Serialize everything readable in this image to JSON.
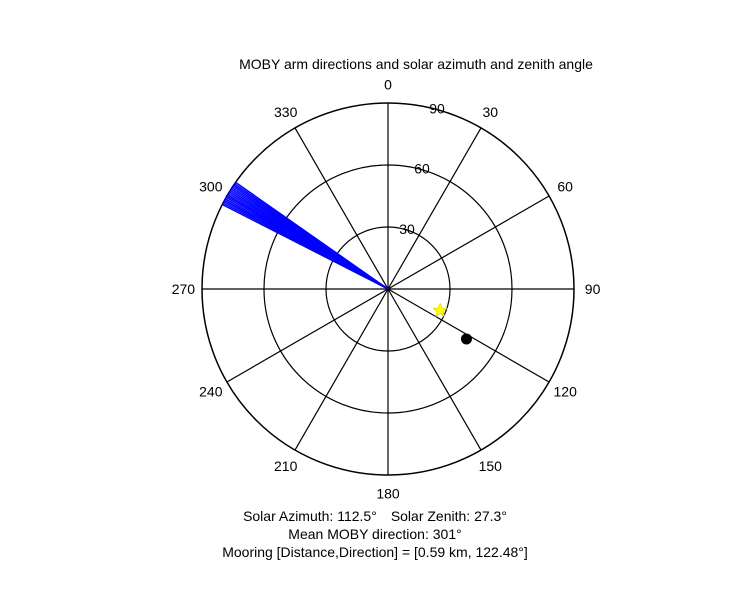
{
  "chart_data": {
    "type": "polar",
    "title": "MOBY arm directions and solar azimuth and zenith angle",
    "orientation": "north-up, clockwise",
    "angle_ticks": [
      "0",
      "30",
      "60",
      "90",
      "120",
      "150",
      "180",
      "210",
      "240",
      "270",
      "300",
      "330"
    ],
    "angle_tick_values": [
      0,
      30,
      60,
      90,
      120,
      150,
      180,
      210,
      240,
      270,
      300,
      330
    ],
    "radial_ticks": [
      "30",
      "60",
      "90"
    ],
    "radial_tick_values": [
      30,
      60,
      90
    ],
    "radial_max": 90,
    "grid": true,
    "series": [
      {
        "kind": "arm-direction-fan",
        "color": "#0000ff",
        "directions_deg": [
          297,
          297.5,
          298,
          298.5,
          299,
          299.5,
          300,
          300.5,
          301,
          301.5,
          302,
          302.5,
          303,
          303.5,
          304,
          304.5,
          305
        ],
        "radius": 90
      },
      {
        "kind": "sun-marker",
        "color": "#ffff00",
        "azimuth_deg": 112.5,
        "zenith_deg": 27.3
      },
      {
        "kind": "mooring-marker",
        "color": "#000000",
        "direction_deg": 122.48,
        "radius": 45
      }
    ]
  },
  "captions": {
    "solar_azimuth": "Solar Azimuth: 112.5°",
    "solar_zenith": "Solar Zenith: 27.3°",
    "mean_direction": "Mean MOBY direction: 301°",
    "mooring": "Mooring [Distance,Direction] = [0.59 km, 122.48°]"
  }
}
